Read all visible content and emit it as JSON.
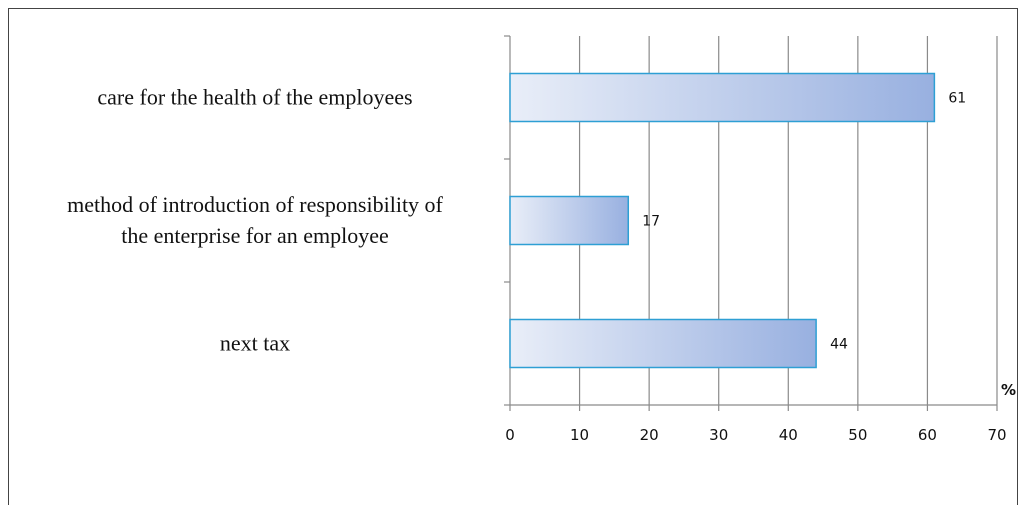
{
  "chart_data": {
    "type": "bar",
    "orientation": "horizontal",
    "categories": [
      "care for the health of the employees",
      "method of introduction of responsibility of the enterprise for an employee",
      "next tax"
    ],
    "category_lines": [
      [
        "care for the health of the employees"
      ],
      [
        "method of introduction of responsibility of",
        "the enterprise for an employee"
      ],
      [
        "next tax"
      ]
    ],
    "values": [
      61,
      17,
      44
    ],
    "data_labels": [
      "61",
      "17",
      "44"
    ],
    "x_ticks": [
      "0",
      "10",
      "20",
      "30",
      "40",
      "50",
      "60",
      "70"
    ],
    "xlim": [
      0,
      70
    ],
    "xlabel": "%",
    "grid": "vertical",
    "bar_gradient": [
      "#e9eef8",
      "#98b0e0"
    ],
    "bar_border": "#2e9fd4"
  }
}
